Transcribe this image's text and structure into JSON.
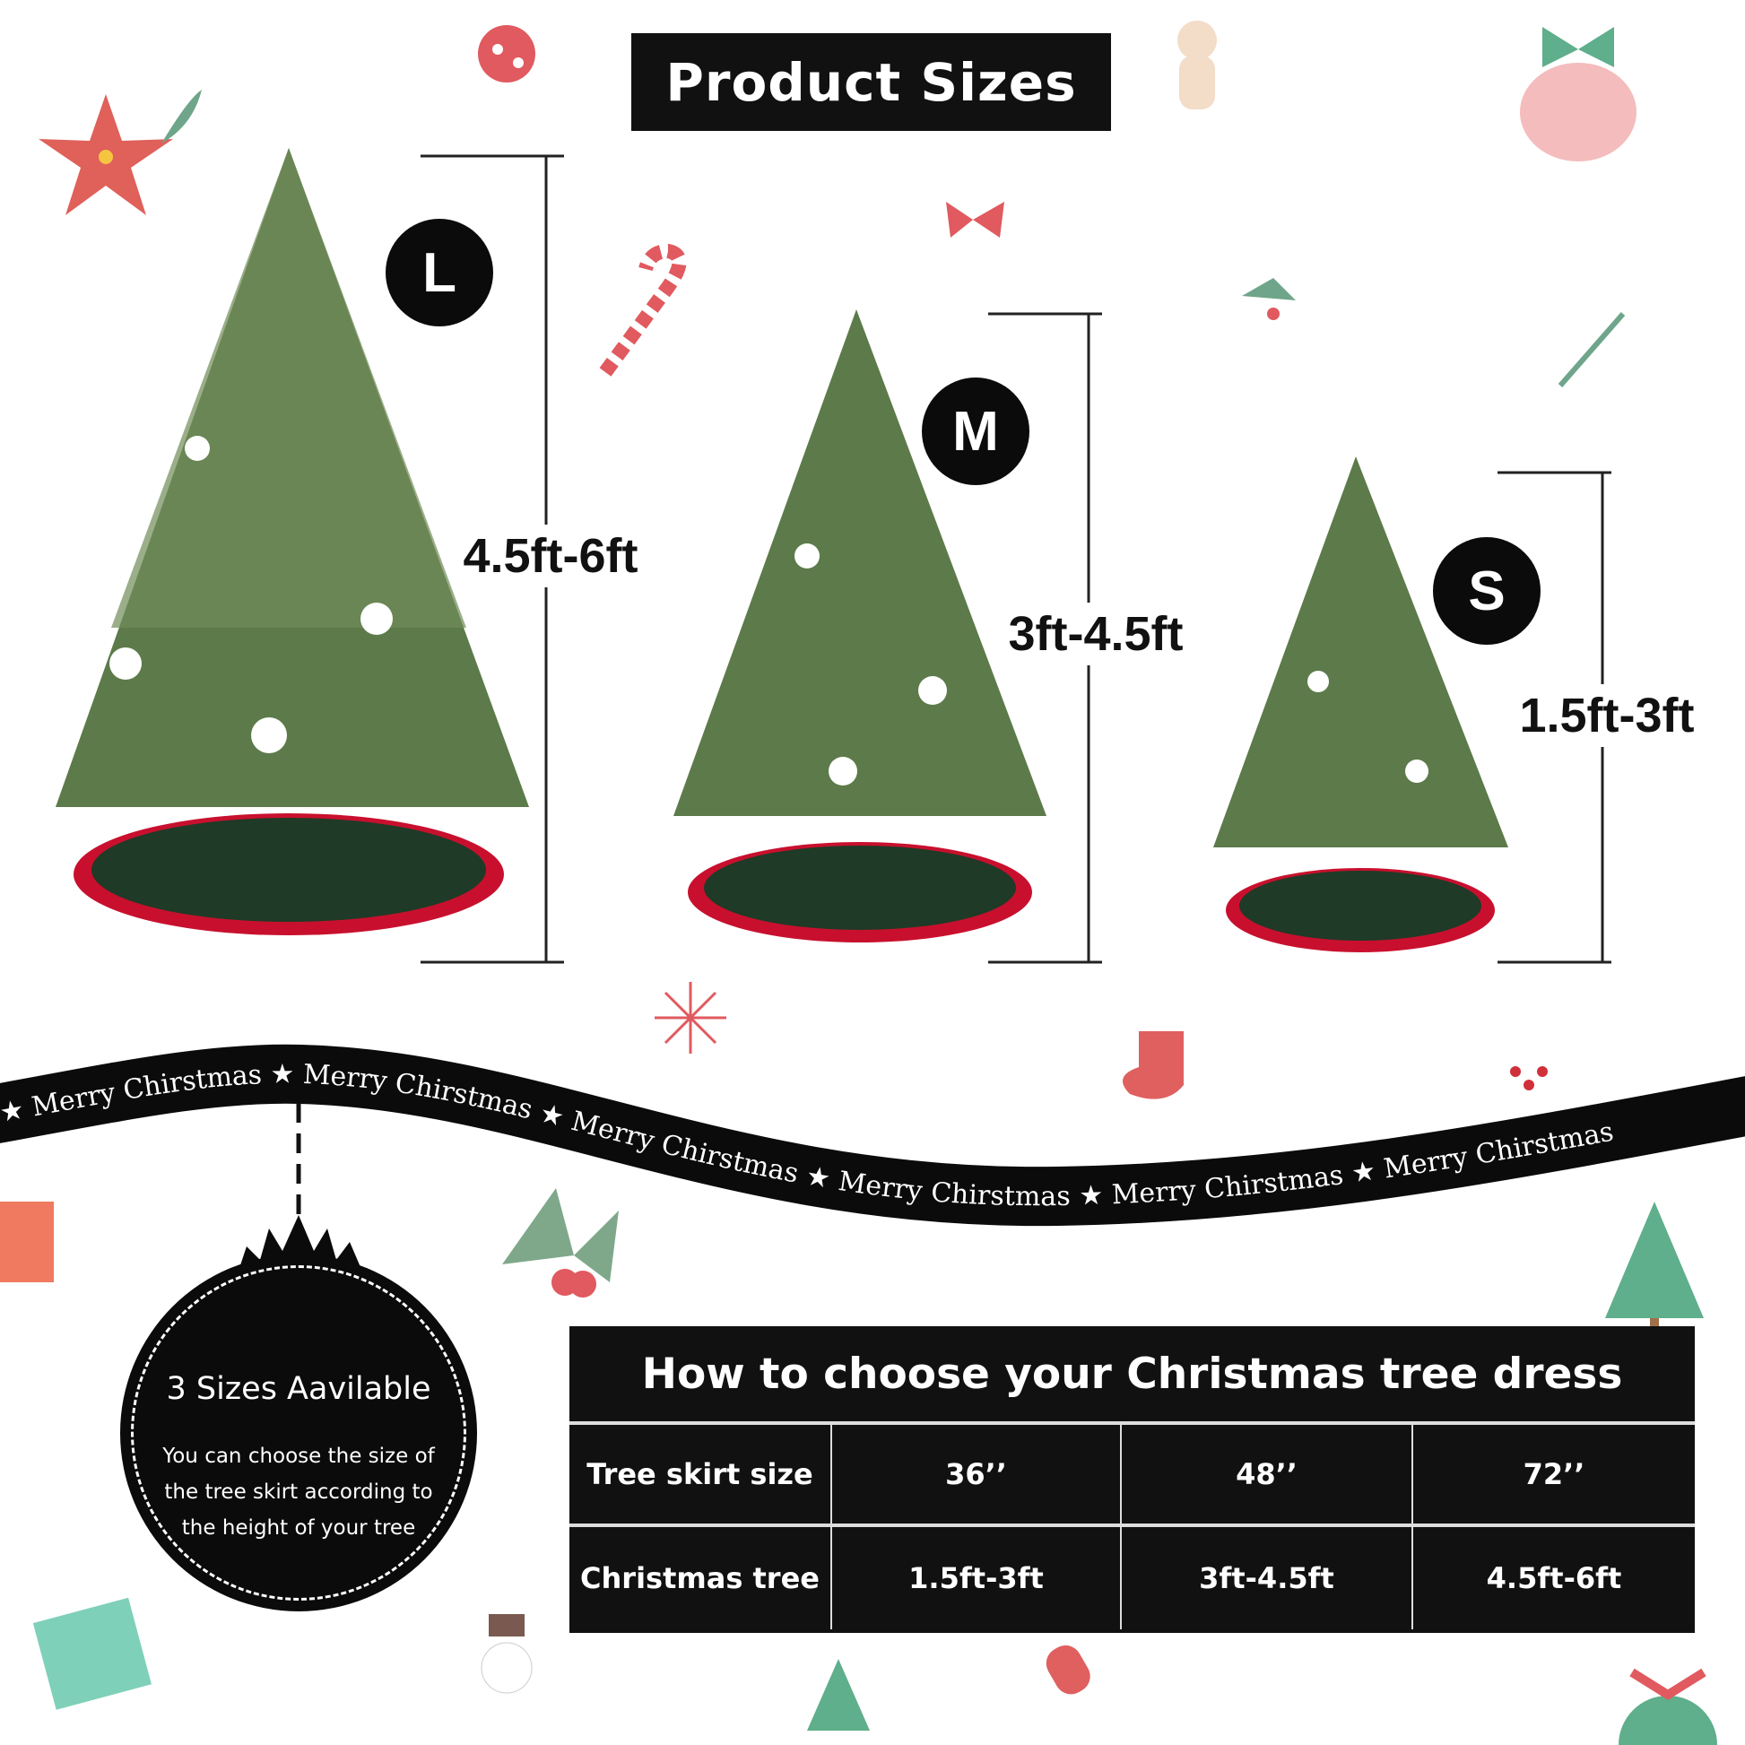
{
  "title": "Product Sizes",
  "sizes": [
    {
      "badge": "L",
      "range": "4.5ft-6ft"
    },
    {
      "badge": "M",
      "range": "3ft-4.5ft"
    },
    {
      "badge": "S",
      "range": "1.5ft-3ft"
    }
  ],
  "ribbon_text": "Merry Chirstmas",
  "ornament": {
    "title": "3 Sizes Aavilable",
    "body": "You can choose the size of the tree skirt according to the height of your tree"
  },
  "table": {
    "title": "How to choose your Christmas tree dress",
    "rows": [
      {
        "label": "Tree skirt size",
        "values": [
          "36’’",
          "48’’",
          "72’’"
        ]
      },
      {
        "label": "Christmas tree",
        "values": [
          "1.5ft-3ft",
          "3ft-4.5ft",
          "4.5ft-6ft"
        ]
      }
    ]
  },
  "colors": {
    "black": "#111111",
    "tree_green": "#5d7a4a",
    "skirt_red": "#c8102e",
    "skirt_green": "#1f3a26"
  }
}
